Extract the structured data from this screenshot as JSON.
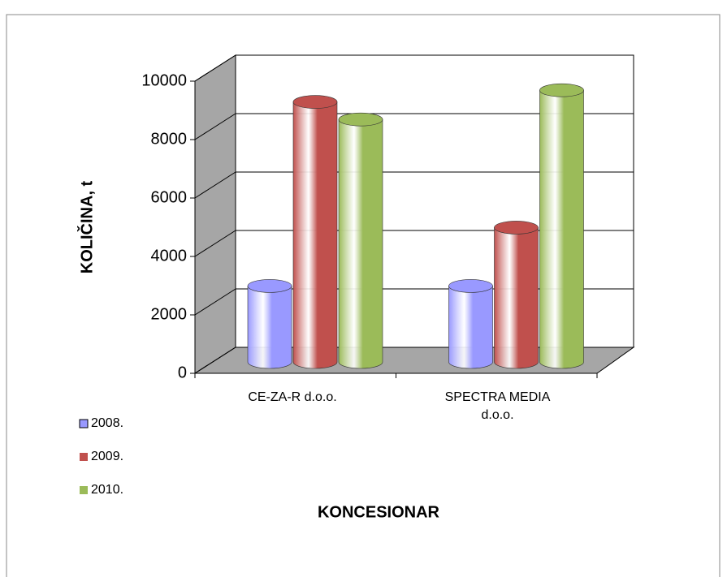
{
  "chart_data": {
    "type": "bar3d",
    "y_label": "KOLIČINA, t",
    "x_label": "KONCESIONAR",
    "categories": [
      "CE-ZA-R d.o.o.",
      "SPECTRA MEDIA d.o.o."
    ],
    "series": [
      {
        "name": "2008.",
        "color": "#9999ff",
        "values": [
          2600,
          2600
        ]
      },
      {
        "name": "2009.",
        "color": "#c0504d",
        "values": [
          8900,
          4600
        ]
      },
      {
        "name": "2010.",
        "color": "#9bbb59",
        "values": [
          8300,
          9300
        ]
      }
    ],
    "ylim": [
      0,
      10000
    ],
    "yticks": [
      0,
      2000,
      4000,
      6000,
      8000,
      10000
    ],
    "grid": true,
    "legend": "left"
  }
}
